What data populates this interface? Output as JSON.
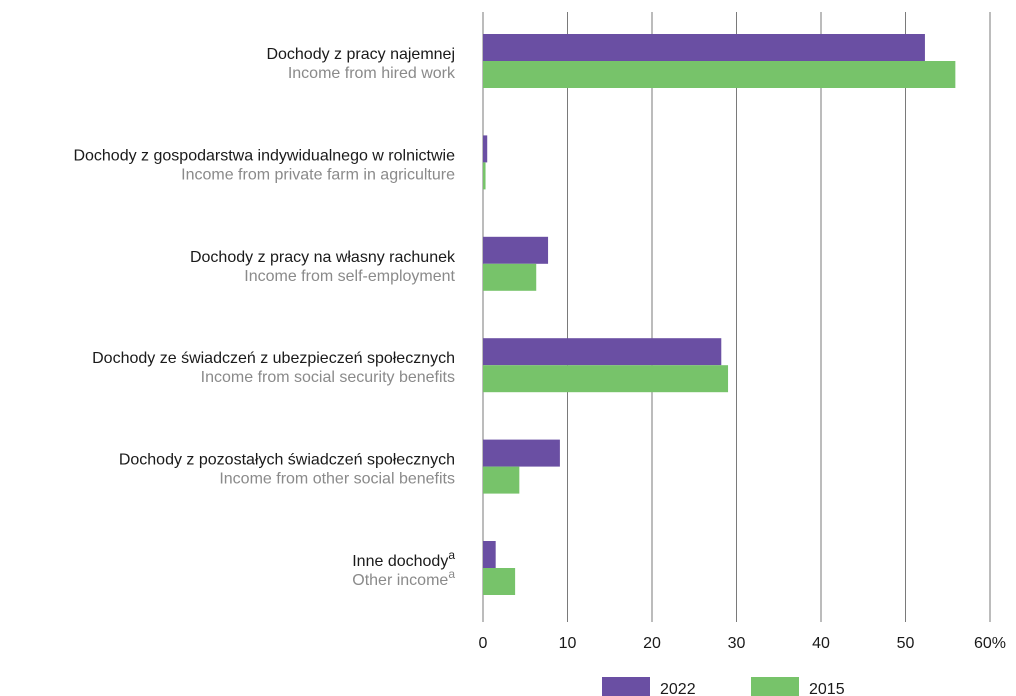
{
  "chart_data": {
    "type": "bar",
    "orientation": "horizontal",
    "categories": [
      {
        "label_pl": "Dochody z pracy najemnej",
        "label_en": "Income from hired work",
        "footnote": ""
      },
      {
        "label_pl": "Dochody z gospodarstwa indywidualnego w rolnictwie",
        "label_en": "Income from private farm in agriculture",
        "footnote": ""
      },
      {
        "label_pl": "Dochody z pracy na własny rachunek",
        "label_en": "Income from self-employment",
        "footnote": ""
      },
      {
        "label_pl": "Dochody ze świadczeń z ubezpieczeń społecznych",
        "label_en": "Income from social security benefits",
        "footnote": ""
      },
      {
        "label_pl": "Dochody z pozostałych świadczeń społecznych",
        "label_en": "Income from other social benefits",
        "footnote": ""
      },
      {
        "label_pl": "Inne dochody",
        "label_en": "Other income",
        "footnote": "a"
      }
    ],
    "series": [
      {
        "name": "2022",
        "color": "#6a4fa3",
        "values": [
          52.3,
          0.5,
          7.7,
          28.2,
          9.1,
          1.5
        ]
      },
      {
        "name": "2015",
        "color": "#77c36a",
        "values": [
          55.9,
          0.3,
          6.3,
          29.0,
          4.3,
          3.8
        ]
      }
    ],
    "xlim": [
      0,
      60
    ],
    "x_ticks": [
      "0",
      "10",
      "20",
      "30",
      "40",
      "50",
      "60%"
    ],
    "grid": true,
    "legend_position": "bottom"
  }
}
